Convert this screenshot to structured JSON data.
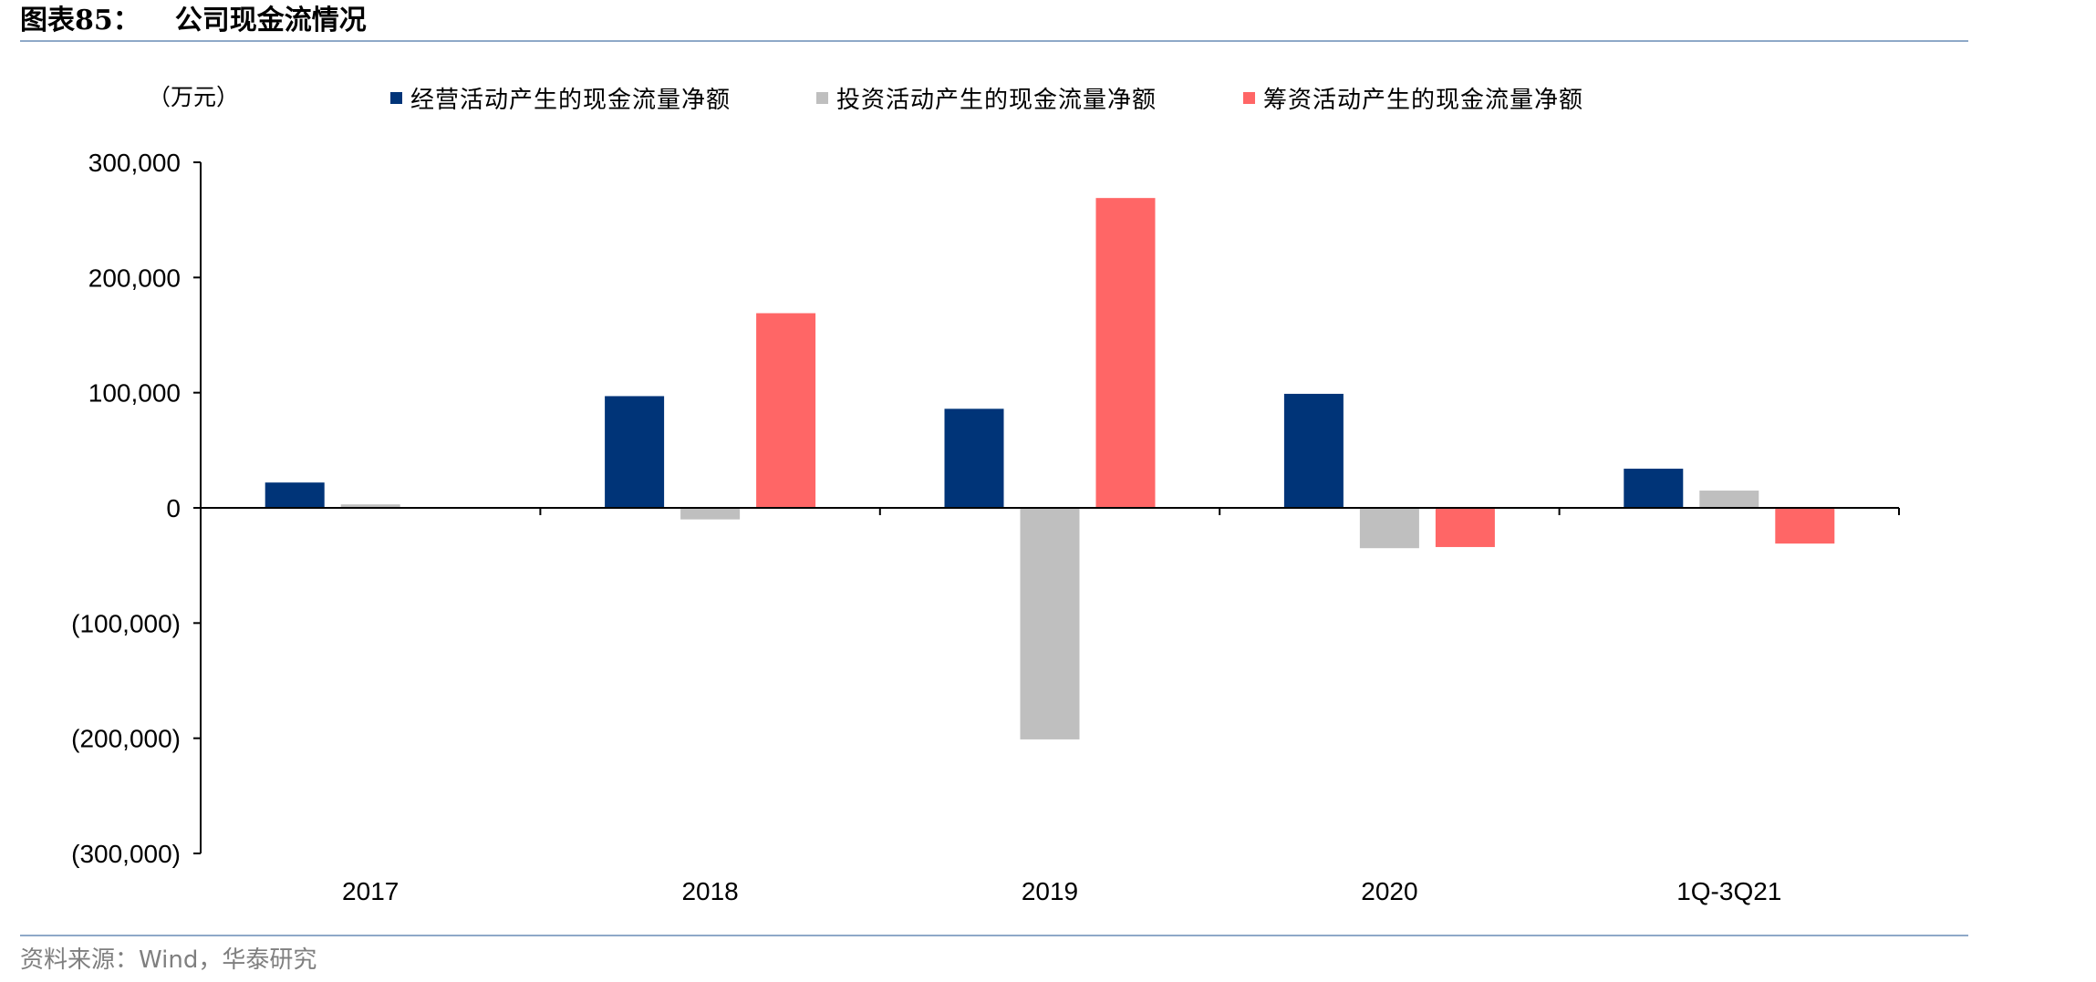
{
  "header": {
    "figure_no": "图表85：",
    "title": "公司现金流情况"
  },
  "footer": {
    "source": "资料来源：Wind，华泰研究"
  },
  "colors": {
    "operating": "#003478",
    "investing": "#bfbfbf",
    "financing": "#ff6666",
    "rule": "#8ea9c8"
  },
  "chart_data": {
    "type": "bar",
    "unit_label": "（万元）",
    "categories": [
      "2017",
      "2018",
      "2019",
      "2020",
      "1Q-3Q21"
    ],
    "series": [
      {
        "name": "经营活动产生的现金流量净额",
        "color": "#003478",
        "values": [
          22000,
          97000,
          86000,
          99000,
          34000
        ]
      },
      {
        "name": "投资活动产生的现金流量净额",
        "color": "#bfbfbf",
        "values": [
          3000,
          -10000,
          -201000,
          -35000,
          15000
        ]
      },
      {
        "name": "筹资活动产生的现金流量净额",
        "color": "#ff6666",
        "values": [
          0,
          169000,
          269000,
          -34000,
          -31000
        ]
      }
    ],
    "ylim": [
      -300000,
      300000
    ],
    "yticks": [
      300000,
      200000,
      100000,
      0,
      -100000,
      -200000,
      -300000
    ],
    "ytick_labels": [
      "300,000",
      "200,000",
      "100,000",
      "0",
      "(100,000)",
      "(200,000)",
      "(300,000)"
    ],
    "grid": false,
    "legend_position": "top"
  }
}
